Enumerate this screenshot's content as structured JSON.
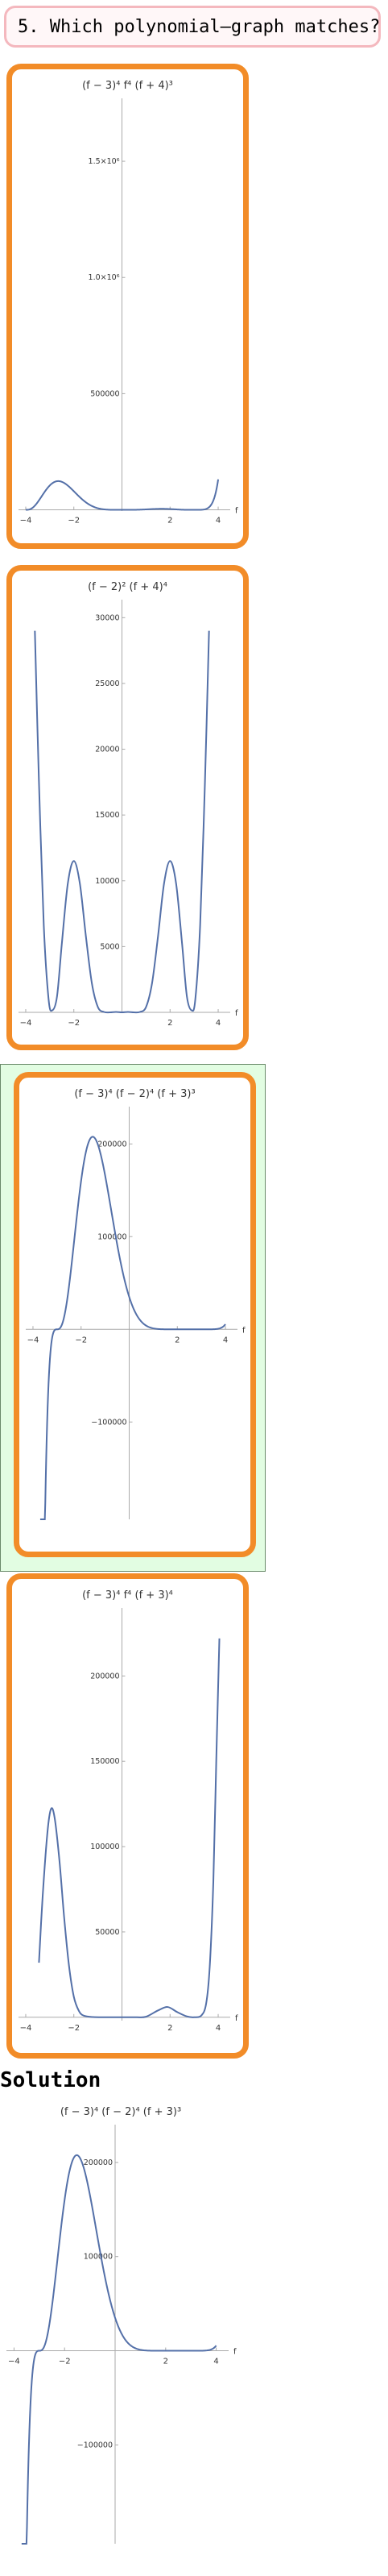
{
  "question": "5. Which polynomial–graph matches?",
  "solution_label": "Solution",
  "colors": {
    "accent": "#f28c28",
    "correct_bg": "#e2fde2",
    "curve": "#5470a8",
    "question_border": "#f4b8be"
  },
  "chart_data": [
    {
      "type": "line",
      "title": "(f − 3)⁴ f⁴ (f + 4)³",
      "xlabel": "f",
      "xlim": [
        -4.3,
        4.3
      ],
      "ylim": [
        -5000,
        1750000
      ],
      "x_ticks": [
        {
          "v": -4,
          "label": "−4"
        },
        {
          "v": -2,
          "label": "−2"
        },
        {
          "v": 2,
          "label": "2"
        },
        {
          "v": 4,
          "label": "4"
        }
      ],
      "y_ticks": [
        {
          "v": 500000,
          "label": "500000"
        },
        {
          "v": 1000000,
          "label": "1.0×10⁶"
        },
        {
          "v": 1500000,
          "label": "1.5×10⁶"
        }
      ],
      "poly": {
        "roots": [
          [
            3,
            4
          ],
          [
            0,
            4
          ],
          [
            -4,
            3
          ]
        ]
      },
      "domain": [
        -4,
        4
      ]
    },
    {
      "type": "line",
      "title": "(f − 2)² (f + 4)⁴",
      "xlabel": "f",
      "xlim": [
        -4.3,
        4.3
      ],
      "ylim": [
        0,
        31000
      ],
      "x_ticks": [
        {
          "v": -4,
          "label": "−4"
        },
        {
          "v": -2,
          "label": "−2"
        },
        {
          "v": 2,
          "label": "2"
        },
        {
          "v": 4,
          "label": "4"
        }
      ],
      "y_ticks": [
        {
          "v": 5000,
          "label": "5000"
        },
        {
          "v": 10000,
          "label": "10000"
        },
        {
          "v": 15000,
          "label": "15000"
        },
        {
          "v": 20000,
          "label": "20000"
        },
        {
          "v": 25000,
          "label": "25000"
        },
        {
          "v": 30000,
          "label": "30000"
        }
      ],
      "points": [
        [
          -3.62,
          29000
        ],
        [
          -3.45,
          17500
        ],
        [
          -3.25,
          6600
        ],
        [
          -3.05,
          1000
        ],
        [
          -2.9,
          150
        ],
        [
          -2.7,
          1200
        ],
        [
          -2.5,
          5200
        ],
        [
          -2.25,
          9800
        ],
        [
          -2.0,
          11500
        ],
        [
          -1.75,
          9800
        ],
        [
          -1.5,
          5800
        ],
        [
          -1.25,
          2200
        ],
        [
          -1.0,
          400
        ],
        [
          -0.75,
          30
        ],
        [
          -0.5,
          0
        ],
        [
          -0.25,
          30
        ],
        [
          0,
          0
        ],
        [
          0.25,
          30
        ],
        [
          0.5,
          0
        ],
        [
          0.75,
          30
        ],
        [
          1.0,
          400
        ],
        [
          1.25,
          2200
        ],
        [
          1.5,
          5800
        ],
        [
          1.75,
          9800
        ],
        [
          2.0,
          11500
        ],
        [
          2.25,
          9800
        ],
        [
          2.5,
          5200
        ],
        [
          2.7,
          1200
        ],
        [
          2.9,
          150
        ],
        [
          3.05,
          1000
        ],
        [
          3.25,
          6600
        ],
        [
          3.45,
          17500
        ],
        [
          3.62,
          29000
        ]
      ]
    },
    {
      "type": "line",
      "title": "(f − 3)⁴ (f − 2)⁴ (f + 3)³",
      "xlabel": "f",
      "xlim": [
        -4.3,
        4.3
      ],
      "ylim": [
        -205000,
        235000
      ],
      "x_ticks": [
        {
          "v": -4,
          "label": "−4"
        },
        {
          "v": -2,
          "label": "−2"
        },
        {
          "v": 2,
          "label": "2"
        },
        {
          "v": 4,
          "label": "4"
        }
      ],
      "y_ticks": [
        {
          "v": -100000,
          "label": "−100000"
        },
        {
          "v": 100000,
          "label": "100000"
        },
        {
          "v": 200000,
          "label": "200000"
        }
      ],
      "poly": {
        "roots": [
          [
            3,
            4
          ],
          [
            2,
            4
          ],
          [
            -3,
            3
          ]
        ]
      },
      "domain": [
        -3.7,
        4
      ]
    },
    {
      "type": "line",
      "title": "(f − 3)⁴ f⁴ (f + 3)⁴",
      "xlabel": "f",
      "xlim": [
        -4.3,
        4.3
      ],
      "ylim": [
        -2000,
        237000
      ],
      "x_ticks": [
        {
          "v": -4,
          "label": "−4"
        },
        {
          "v": -2,
          "label": "−2"
        },
        {
          "v": 2,
          "label": "2"
        },
        {
          "v": 4,
          "label": "4"
        }
      ],
      "y_ticks": [
        {
          "v": 50000,
          "label": "50000"
        },
        {
          "v": 100000,
          "label": "100000"
        },
        {
          "v": 150000,
          "label": "150000"
        },
        {
          "v": 200000,
          "label": "200000"
        }
      ],
      "points": [
        [
          -3.45,
          32000
        ],
        [
          -3.3,
          70000
        ],
        [
          -3.1,
          108000
        ],
        [
          -2.95,
          122000
        ],
        [
          -2.8,
          117000
        ],
        [
          -2.6,
          92000
        ],
        [
          -2.4,
          58000
        ],
        [
          -2.2,
          30000
        ],
        [
          -2.0,
          12000
        ],
        [
          -1.8,
          4000
        ],
        [
          -1.6,
          1000
        ],
        [
          -1.2,
          100
        ],
        [
          -0.6,
          0
        ],
        [
          0,
          0
        ],
        [
          0.6,
          0
        ],
        [
          1.0,
          300
        ],
        [
          1.5,
          4000
        ],
        [
          1.9,
          6000
        ],
        [
          2.3,
          3000
        ],
        [
          2.7,
          500
        ],
        [
          3.0,
          0
        ],
        [
          3.3,
          1000
        ],
        [
          3.5,
          8000
        ],
        [
          3.65,
          30000
        ],
        [
          3.8,
          80000
        ],
        [
          3.92,
          150000
        ],
        [
          4.05,
          222000
        ]
      ]
    }
  ]
}
